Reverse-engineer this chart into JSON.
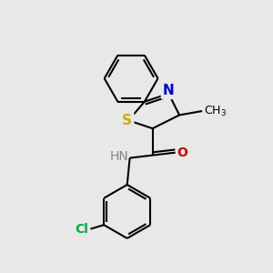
{
  "background_color": "#e8e8e8",
  "bond_color": "#000000",
  "S_color": "#ccaa00",
  "N_color": "#0000cc",
  "O_color": "#cc0000",
  "Cl_color": "#00aa44",
  "font_size": 9,
  "line_width": 1.5,
  "figsize": [
    3.0,
    3.0
  ],
  "dpi": 100,
  "xlim": [
    0,
    10
  ],
  "ylim": [
    0,
    10
  ]
}
